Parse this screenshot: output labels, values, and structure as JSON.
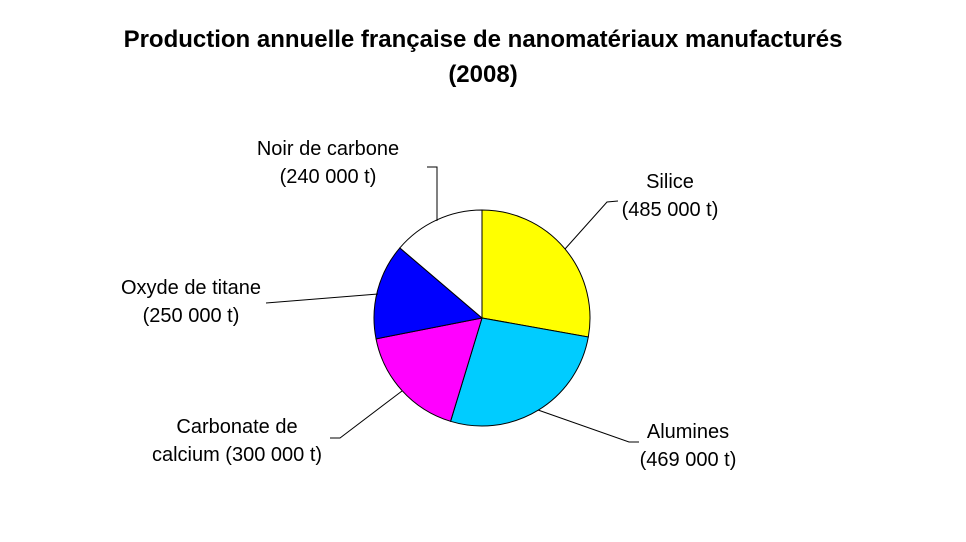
{
  "page": {
    "background_color": "#FFFFFF"
  },
  "title": {
    "line1": "Production annuelle française de nanomatériaux manufacturés",
    "line2": "(2008)"
  },
  "chart_data": {
    "type": "pie",
    "title": "Production annuelle française de nanomatériaux manufacturés (2008)",
    "unit": "t",
    "total_value": 1744000,
    "start_angle_deg": 90,
    "direction": "clockwise",
    "outline_color": "#000000",
    "leader_line_color": "#000000",
    "slices": [
      {
        "name": "Silice",
        "value": 485000,
        "color": "#FFFF00",
        "callout": [
          "Silice",
          "(485 000 t)"
        ]
      },
      {
        "name": "Alumines",
        "value": 469000,
        "color": "#00CCFF",
        "callout": [
          "Alumines",
          "(469 000 t)"
        ]
      },
      {
        "name": "Carbonate de calcium",
        "value": 300000,
        "color": "#FF00FF",
        "callout": [
          "Carbonate de",
          "calcium (300 000 t)"
        ]
      },
      {
        "name": "Oxyde de titane",
        "value": 250000,
        "color": "#0000FF",
        "callout": [
          "Oxyde de titane",
          "(250 000 t)"
        ]
      },
      {
        "name": "Noir de carbone",
        "value": 240000,
        "color": "#FFFFFF",
        "callout": [
          "Noir de carbone",
          "(240 000 t)"
        ]
      }
    ]
  }
}
